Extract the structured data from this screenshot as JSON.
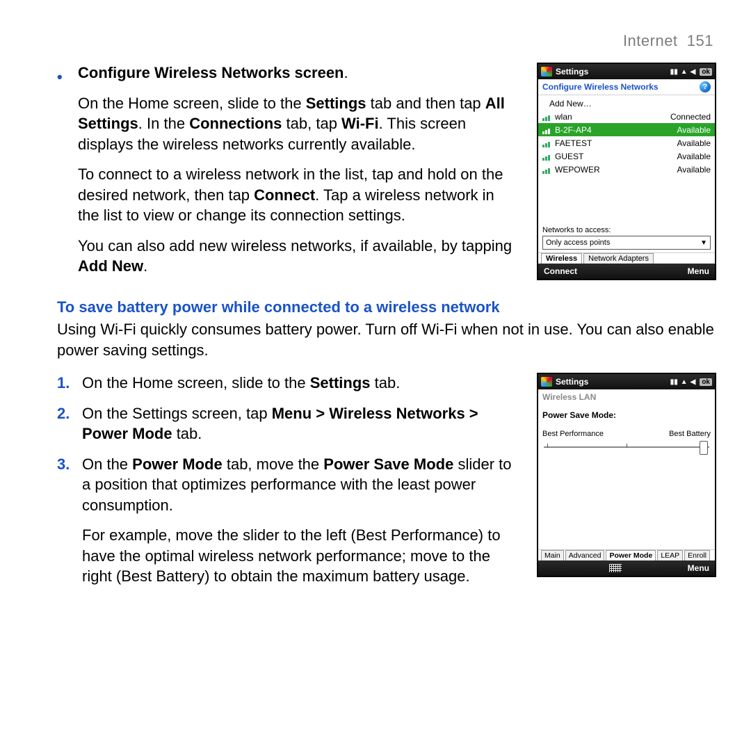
{
  "page": {
    "running_head_section": "Internet",
    "running_head_page": "151",
    "colors": {
      "accent_blue": "#1a53c6",
      "heading_grey": "#7d7d7d",
      "highlight_green": "#29a329",
      "text_black": "#000000",
      "background": "#ffffff"
    },
    "typography": {
      "body_fontsize": 22,
      "line_height": 1.35
    }
  },
  "section1": {
    "bullet_title": "Configure Wireless Networks screen",
    "bullet_title_trailing": ".",
    "p1_a": "On the Home screen, slide to the ",
    "p1_b": "Settings",
    "p1_c": " tab and then tap ",
    "p1_d": "All Settings",
    "p1_e": ". In the ",
    "p1_f": "Connections",
    "p1_g": " tab, tap ",
    "p1_h": "Wi-Fi",
    "p1_i": ". This screen displays the wireless networks currently available.",
    "p2_a": "To connect to a wireless network in the list, tap and hold on the desired network, then tap ",
    "p2_b": "Connect",
    "p2_c": ". Tap a wireless network in the list to view or change its connection settings.",
    "p3_a": "You can also add new wireless networks, if available, by tapping ",
    "p3_b": "Add New",
    "p3_c": "."
  },
  "section2": {
    "heading": "To save battery power while connected to a wireless network",
    "intro": "Using Wi-Fi quickly consumes battery power. Turn off Wi-Fi when not in use. You can also enable power saving settings.",
    "step1_a": "On the Home screen, slide to the ",
    "step1_b": "Settings",
    "step1_c": " tab.",
    "step2_a": "On the Settings screen, tap ",
    "step2_b": "Menu > Wireless Networks > Power Mode",
    "step2_c": " tab.",
    "step3_a": "On the ",
    "step3_b": "Power Mode",
    "step3_c": " tab, move the ",
    "step3_d": "Power Save Mode",
    "step3_e": " slider to a position that optimizes performance with the least power consumption.",
    "step3_sub": "For example, move the slider to the left (Best Performance) to have the optimal wireless network performance; move to the right (Best Battery) to obtain the maximum battery usage.",
    "nums": {
      "n1": "1.",
      "n2": "2.",
      "n3": "3."
    }
  },
  "shot1": {
    "title": "Settings",
    "ok": "ok",
    "subtitle": "Configure Wireless Networks",
    "add_new": "Add New…",
    "networks": [
      {
        "name": "wlan",
        "status": "Connected",
        "selected": false
      },
      {
        "name": "B-2F-AP4",
        "status": "Available",
        "selected": true
      },
      {
        "name": "FAETEST",
        "status": "Available",
        "selected": false
      },
      {
        "name": "GUEST",
        "status": "Available",
        "selected": false
      },
      {
        "name": "WEPOWER",
        "status": "Available",
        "selected": false
      }
    ],
    "access_label": "Networks to access:",
    "dropdown_value": "Only access points",
    "tabs": {
      "t1": "Wireless",
      "t2": "Network Adapters"
    },
    "bottom": {
      "left": "Connect",
      "right": "Menu"
    }
  },
  "shot2": {
    "title": "Settings",
    "ok": "ok",
    "subtitle": "Wireless LAN",
    "psm_label": "Power Save Mode:",
    "left_label": "Best Performance",
    "right_label": "Best Battery",
    "slider": {
      "min": 0,
      "max": 100,
      "value": 94,
      "tick_positions_pct": [
        2,
        50
      ]
    },
    "tabs": {
      "t1": "Main",
      "t2": "Advanced",
      "t3": "Power Mode",
      "t4": "LEAP",
      "t5": "Enroll"
    },
    "bottom": {
      "left": "",
      "right": "Menu"
    }
  }
}
